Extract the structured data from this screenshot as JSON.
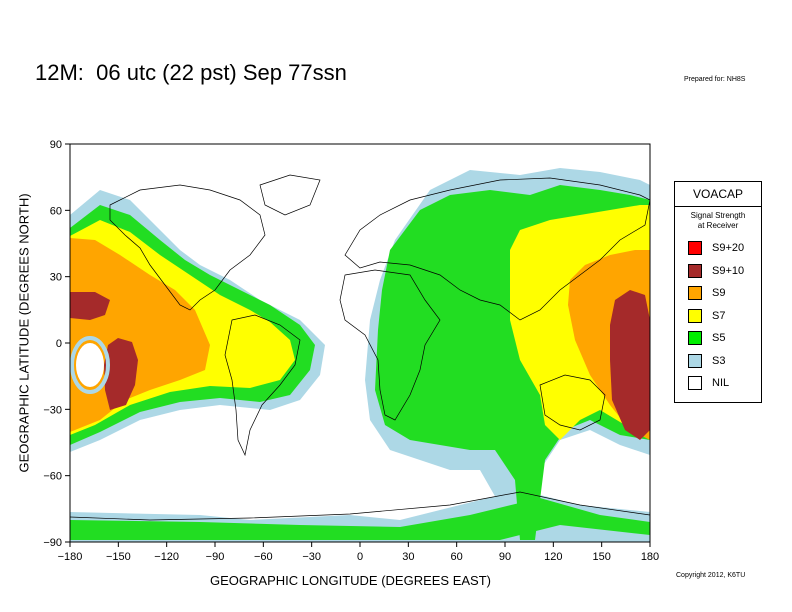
{
  "header": {
    "title": "12M:  06 utc (22 pst) Sep 77ssn",
    "prepared_for": "Prepared for: NH8S",
    "copyright": "Copyright 2012, K6TU"
  },
  "axes": {
    "y_label": "GEOGRAPHIC LATITUDE (DEGREES NORTH)",
    "x_label": "GEOGRAPHIC LONGITUDE (DEGREES EAST)",
    "y_ticks": [
      "90",
      "60",
      "30",
      "0",
      "−30",
      "−60",
      "−90"
    ],
    "x_ticks": [
      "−180",
      "−150",
      "−120",
      "−90",
      "−60",
      "−30",
      "0",
      "30",
      "60",
      "90",
      "120",
      "150",
      "180"
    ],
    "x_range": [
      -180,
      180
    ],
    "y_range": [
      -90,
      90
    ]
  },
  "legend": {
    "title": "VOACAP",
    "subtitle_line1": "Signal Strength",
    "subtitle_line2": "at Receiver",
    "items": [
      {
        "label": "S9+20",
        "color": "#ff0000"
      },
      {
        "label": "S9+10",
        "color": "#a52a2a"
      },
      {
        "label": "S9",
        "color": "#ffa500"
      },
      {
        "label": "S7",
        "color": "#ffff00"
      },
      {
        "label": "S5",
        "color": "#00ee00"
      },
      {
        "label": "S3",
        "color": "#add8e6"
      },
      {
        "label": "NIL",
        "color": "#ffffff"
      }
    ]
  }
}
